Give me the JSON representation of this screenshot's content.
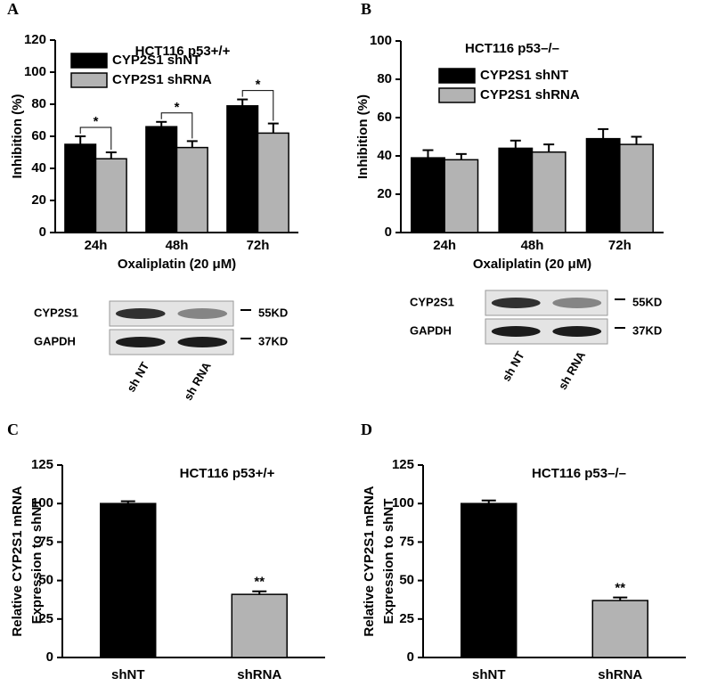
{
  "chart_data": [
    {
      "type": "bar",
      "panel": "A",
      "title": "HCT116 p53+/+",
      "y_label": [
        "Inhibition (%)"
      ],
      "x_label": "Oxaliplatin (20 μM)",
      "categories": [
        "24h",
        "48h",
        "72h"
      ],
      "series": [
        {
          "name": "CYP2S1 shNT",
          "color": "#000000",
          "values": [
            55,
            66,
            79
          ],
          "errors": [
            5,
            3,
            4
          ]
        },
        {
          "name": "CYP2S1 shRNA",
          "color": "#b3b3b3",
          "values": [
            46,
            53,
            62
          ],
          "errors": [
            4,
            4,
            6
          ]
        }
      ],
      "significance": [
        "*",
        "*",
        "*"
      ],
      "ylim": [
        0,
        120
      ],
      "yticks": [
        0,
        20,
        40,
        60,
        80,
        100,
        120
      ],
      "blot": {
        "rows": [
          "CYP2S1",
          "GAPDH"
        ],
        "markers": [
          "55KD",
          "37KD"
        ],
        "lanes": [
          "sh NT",
          "sh RNA"
        ]
      }
    },
    {
      "type": "bar",
      "panel": "B",
      "title": "HCT116 p53–/–",
      "y_label": [
        "Inhibition (%)"
      ],
      "x_label": "Oxaliplatin (20 μM)",
      "categories": [
        "24h",
        "48h",
        "72h"
      ],
      "series": [
        {
          "name": "CYP2S1 shNT",
          "color": "#000000",
          "values": [
            39,
            44,
            49
          ],
          "errors": [
            4,
            4,
            5
          ]
        },
        {
          "name": "CYP2S1 shRNA",
          "color": "#b3b3b3",
          "values": [
            38,
            42,
            46
          ],
          "errors": [
            3,
            4,
            4
          ]
        }
      ],
      "ylim": [
        0,
        100
      ],
      "yticks": [
        0,
        20,
        40,
        60,
        80,
        100
      ],
      "blot": {
        "rows": [
          "CYP2S1",
          "GAPDH"
        ],
        "markers": [
          "55KD",
          "37KD"
        ],
        "lanes": [
          "sh NT",
          "sh RNA"
        ]
      }
    },
    {
      "type": "bar",
      "panel": "C",
      "title": "HCT116 p53+/+",
      "y_label": [
        "Relative CYP2S1 mRNA",
        "Expression to shNT"
      ],
      "categories": [
        "shNT",
        "shRNA"
      ],
      "values": [
        100,
        41
      ],
      "errors": [
        1.5,
        2
      ],
      "colors": [
        "#000000",
        "#b3b3b3"
      ],
      "value_annotations": [
        null,
        "**"
      ],
      "ylim": [
        0,
        125
      ],
      "yticks": [
        0,
        25,
        50,
        75,
        100,
        125
      ]
    },
    {
      "type": "bar",
      "panel": "D",
      "title": "HCT116 p53–/–",
      "y_label": [
        "Relative CYP2S1 mRNA",
        "Expression to shNT"
      ],
      "categories": [
        "shNT",
        "shRNA"
      ],
      "values": [
        100,
        37
      ],
      "errors": [
        2,
        2
      ],
      "colors": [
        "#000000",
        "#b3b3b3"
      ],
      "value_annotations": [
        null,
        "**"
      ],
      "ylim": [
        0,
        125
      ],
      "yticks": [
        0,
        25,
        50,
        75,
        100,
        125
      ]
    }
  ]
}
